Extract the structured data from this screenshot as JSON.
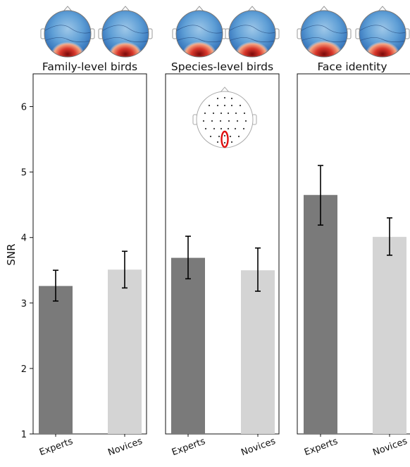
{
  "chart_data": {
    "type": "bar",
    "ylabel": "SNR",
    "ylim": [
      1,
      6.5
    ],
    "yticks": [
      "1",
      "2",
      "3",
      "4",
      "5",
      "6"
    ],
    "categories": [
      "Experts",
      "Novices"
    ],
    "bar_colors": {
      "Experts": "#7a7a7a",
      "Novices": "#d4d4d4"
    },
    "error_bar_color": "#000000",
    "panels": [
      {
        "title": "Family-level birds",
        "values": [
          3.26,
          3.51
        ],
        "err_low": [
          3.03,
          3.23
        ],
        "err_high": [
          3.5,
          3.79
        ]
      },
      {
        "title": "Species-level birds",
        "values": [
          3.69,
          3.5
        ],
        "err_low": [
          3.37,
          3.18
        ],
        "err_high": [
          4.02,
          3.84
        ]
      },
      {
        "title": "Face identity",
        "values": [
          4.65,
          4.01
        ],
        "err_low": [
          4.19,
          3.73
        ],
        "err_high": [
          5.1,
          4.3
        ]
      }
    ],
    "inset": "electrode-map-occipital-cluster",
    "headmaps": "topographic-snr-maps-per-group"
  }
}
